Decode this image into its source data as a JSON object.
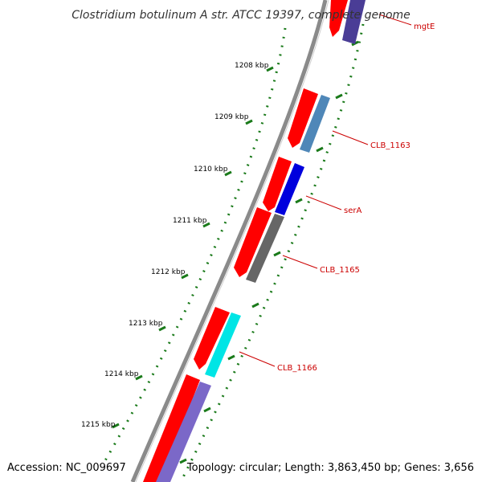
{
  "title": "Clostridium botulinum A str. ATCC 19397, complete genome",
  "footer": {
    "accession": "Accession: NC_009697",
    "summary": "Topology: circular; Length: 3,863,450 bp; Genes: 3,656"
  },
  "ticks": [
    "1208 kbp",
    "1209 kbp",
    "1210 kbp",
    "1211 kbp",
    "1212 kbp",
    "1213 kbp",
    "1214 kbp",
    "1215 kbp"
  ],
  "gene_labels": [
    "mgtE",
    "CLB_1163",
    "serA",
    "CLB_1165",
    "CLB_1166"
  ],
  "colors": {
    "backbone": "#8a8a8a",
    "cds_forward": "#ff0000",
    "cds_track_steelblue": "#4f87b8",
    "cds_track_blue": "#0000dd",
    "cds_track_gray": "#666666",
    "cds_track_cyan": "#00e5e5",
    "cds_track_purple": "#7b68c8",
    "tick_marks": "#1a7a1a",
    "label_text": "#cc0000"
  }
}
